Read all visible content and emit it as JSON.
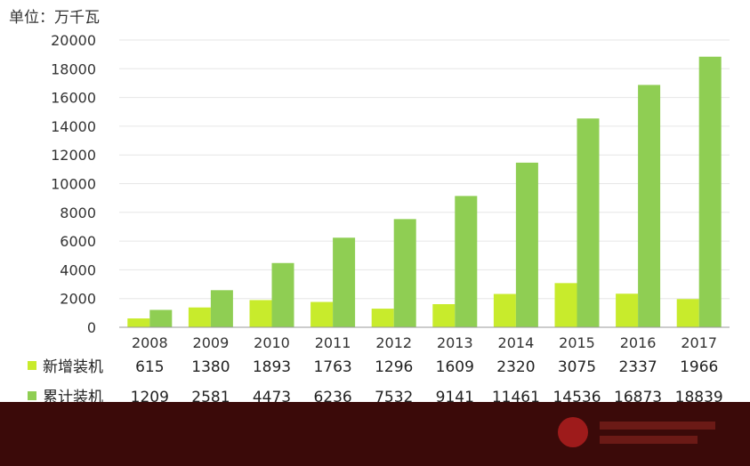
{
  "chart_data": {
    "type": "bar",
    "unit_label": "单位：万千瓦",
    "categories": [
      "2008",
      "2009",
      "2010",
      "2011",
      "2012",
      "2013",
      "2014",
      "2015",
      "2016",
      "2017"
    ],
    "series": [
      {
        "name": "新增装机",
        "values": [
          615,
          1380,
          1893,
          1763,
          1296,
          1609,
          2320,
          3075,
          2337,
          1966
        ],
        "color": "#c8eb2c"
      },
      {
        "name": "累计装机",
        "values": [
          1209,
          2581,
          4473,
          6236,
          7532,
          9141,
          11461,
          14536,
          16873,
          18839
        ],
        "color": "#8fce53"
      }
    ],
    "ylim": [
      0,
      20000
    ],
    "yticks": [
      0,
      2000,
      4000,
      6000,
      8000,
      10000,
      12000,
      14000,
      16000,
      18000,
      20000
    ],
    "grid": true,
    "legend": "table-below"
  },
  "colors": {
    "footer_band": "#3b0a09",
    "axis": "#999999",
    "grid": "#e6e6e6"
  }
}
